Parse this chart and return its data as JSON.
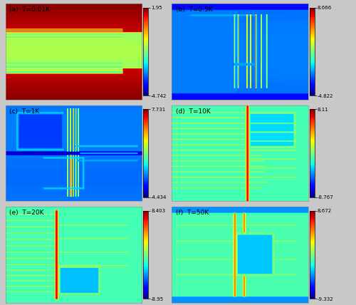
{
  "panels": [
    {
      "label": "(a)",
      "temp": "T=0.01K",
      "vmax": 1.95,
      "vmin": -4.742
    },
    {
      "label": "(b)",
      "temp": "T=0.5K",
      "vmax": 8.666,
      "vmin": -4.822
    },
    {
      "label": "(c)",
      "temp": "T=1K",
      "vmax": 7.731,
      "vmin": -4.434
    },
    {
      "label": "(d)",
      "temp": "T=10K",
      "vmax": 8.11,
      "vmin": -8.767
    },
    {
      "label": "(e)",
      "temp": "T=20K",
      "vmax": 8.403,
      "vmin": -8.95
    },
    {
      "label": "(f)",
      "temp": "T=50K",
      "vmax": 8.672,
      "vmin": -9.332
    }
  ],
  "colormap": "jet",
  "fig_bg": "#c8c8c8",
  "label_fontsize": 6.5,
  "cbar_fontsize": 5.0,
  "fig_width": 5.0,
  "fig_height": 4.28,
  "dpi": 100
}
